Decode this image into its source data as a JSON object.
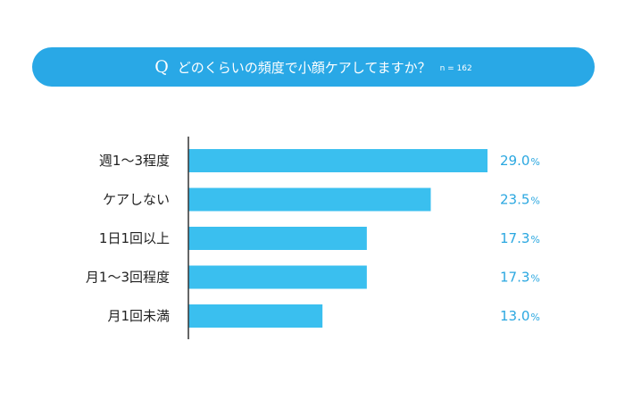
{
  "header": {
    "q_mark": "Q",
    "title": "どのくらいの頻度で小顔ケアしてますか？",
    "sample": "n = 162"
  },
  "colors": {
    "accent": "#29A8E6",
    "bar": "#3ABFEF",
    "value_text": "#2AA7E0",
    "axis": "#333333"
  },
  "chart_data": {
    "type": "bar",
    "orientation": "horizontal",
    "title": "どのくらいの頻度で小顔ケアしてますか？",
    "categories": [
      "週1〜3程度",
      "ケアしない",
      "1日1回以上",
      "月1〜3回程度",
      "月1回未満"
    ],
    "values": [
      29.0,
      23.5,
      17.3,
      17.3,
      13.0
    ],
    "value_labels": [
      "29.0",
      "23.5",
      "17.3",
      "17.3",
      "13.0"
    ],
    "unit": "%",
    "xlim": [
      0,
      29.0
    ],
    "grid": false,
    "legend": "none"
  }
}
